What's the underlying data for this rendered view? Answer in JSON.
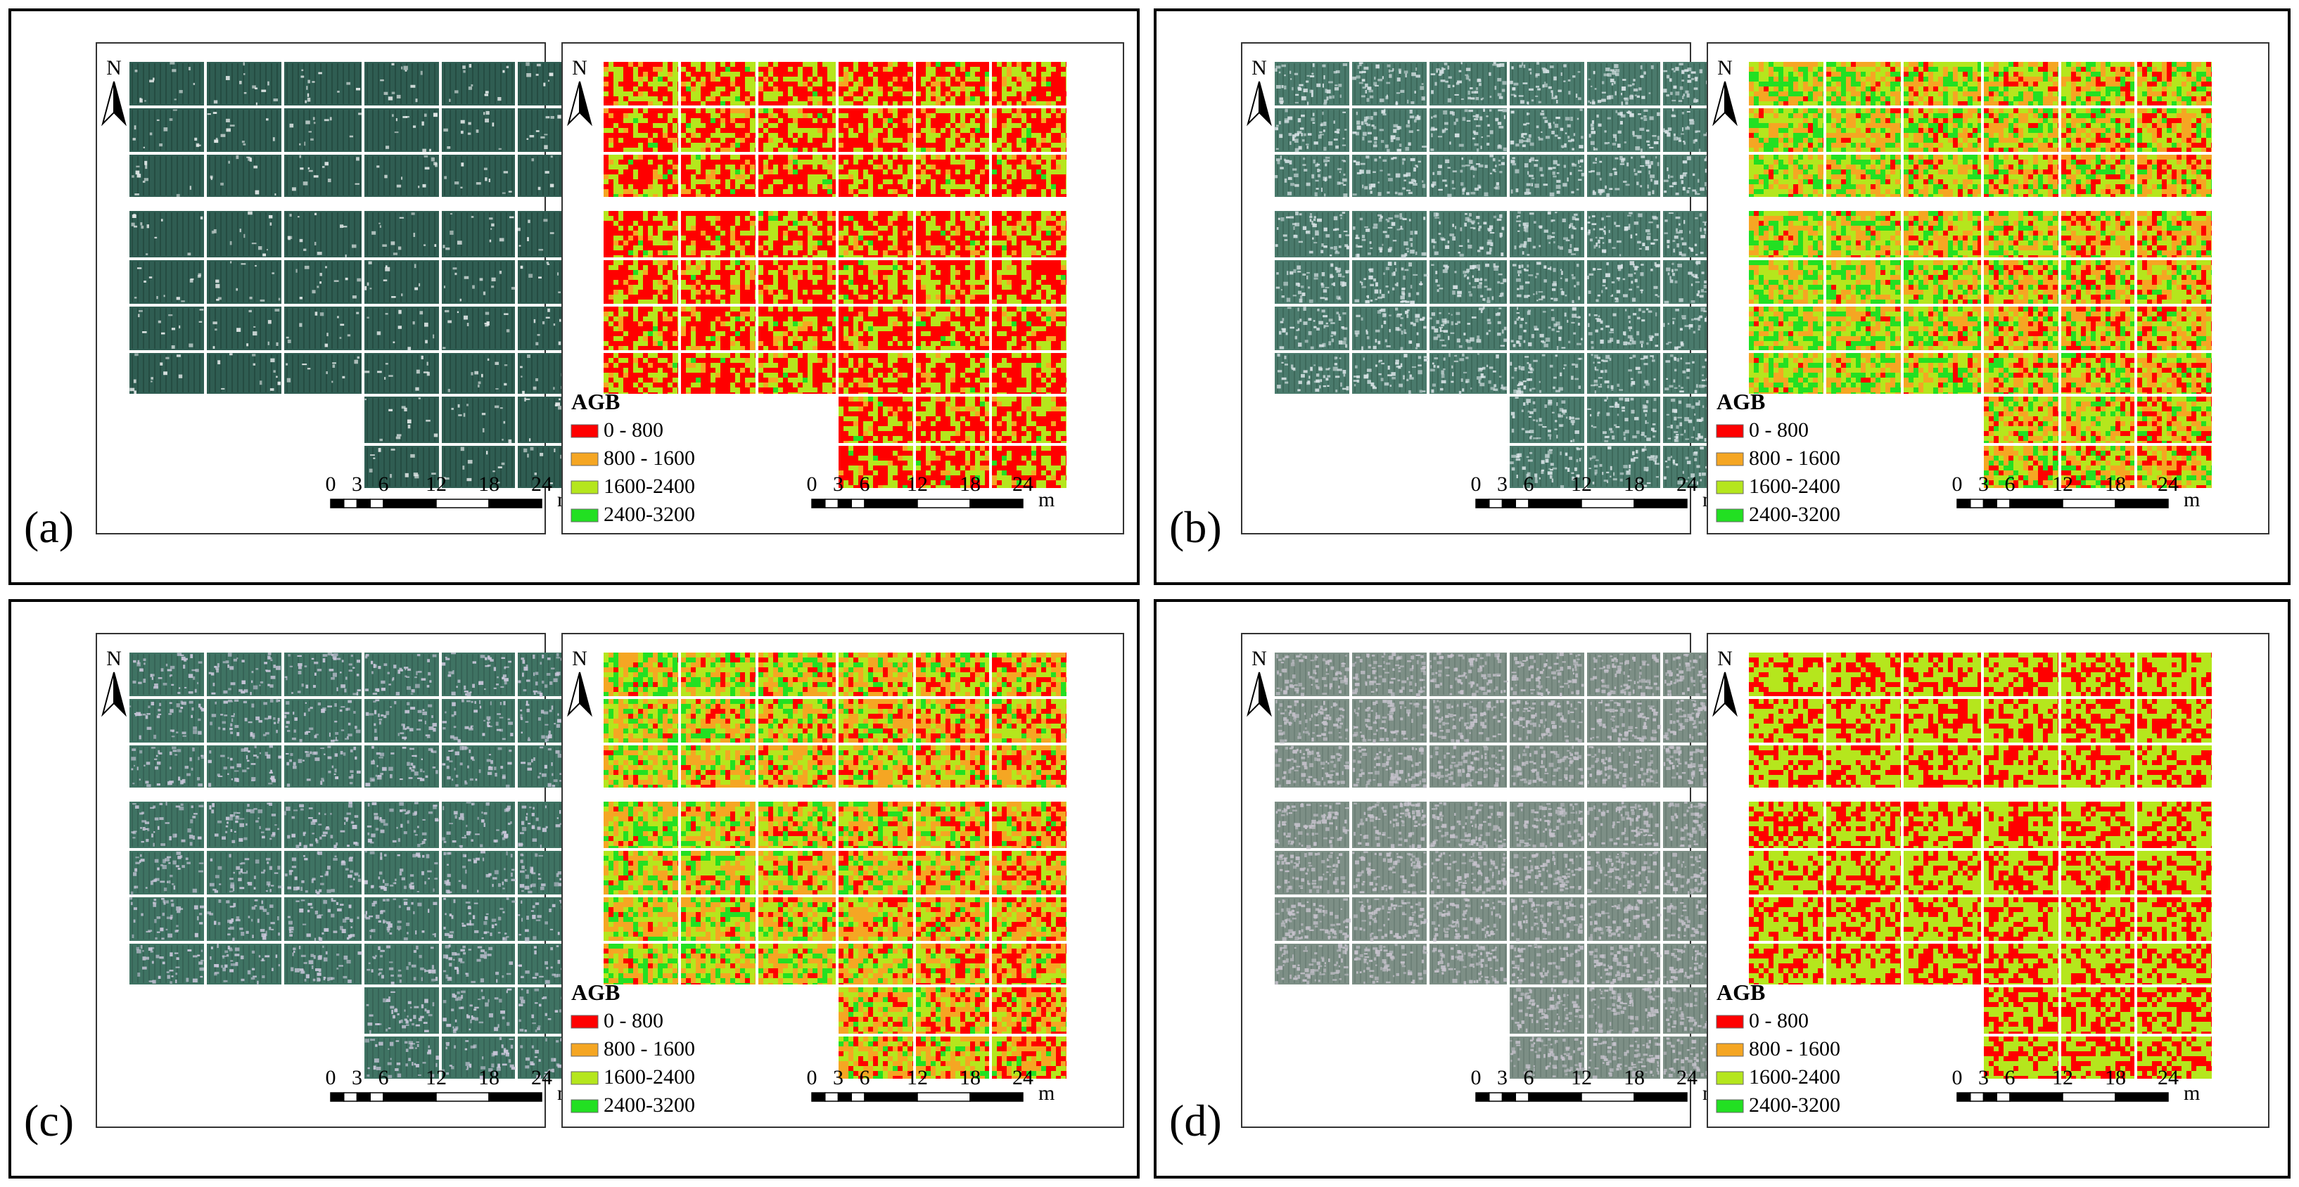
{
  "figure": {
    "panels": [
      {
        "label": "(a)",
        "theme": "a"
      },
      {
        "label": "(b)",
        "theme": "b"
      },
      {
        "label": "(c)",
        "theme": "c"
      },
      {
        "label": "(d)",
        "theme": "d"
      }
    ],
    "north_label": "N",
    "scale_bar": {
      "ticks": [
        "0",
        "3",
        "6",
        "12",
        "18",
        "24"
      ],
      "unit": "m"
    },
    "legend": {
      "title": "AGB",
      "classes": [
        {
          "label": "0 - 800",
          "color": "#ff0000"
        },
        {
          "label": "800 - 1600",
          "color": "#f5a623"
        },
        {
          "label": "1600-2400",
          "color": "#b5e61d"
        },
        {
          "label": "2400-3200",
          "color": "#22e022"
        }
      ]
    }
  }
}
